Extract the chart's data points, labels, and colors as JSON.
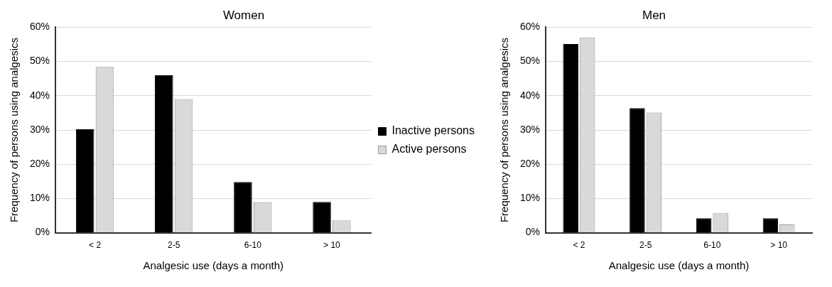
{
  "chart_data": [
    {
      "type": "bar",
      "title": "Women",
      "xlabel": "Analgesic use (days a month)",
      "ylabel": "Frequency of persons using analgesics",
      "categories": [
        "< 2",
        "2-5",
        "6-10",
        "> 10"
      ],
      "series": [
        {
          "name": "Inactive persons",
          "color": "#000000",
          "values": [
            30.2,
            46.0,
            14.8,
            9.0
          ]
        },
        {
          "name": "Active persons",
          "color": "#d9d9d9",
          "values": [
            48.4,
            39.0,
            8.9,
            3.6
          ]
        }
      ],
      "ylim": [
        0,
        60
      ],
      "yticks": [
        {
          "value": 0,
          "label": "0%"
        },
        {
          "value": 10,
          "label": "10%"
        },
        {
          "value": 20,
          "label": "20%"
        },
        {
          "value": 30,
          "label": "30%"
        },
        {
          "value": 40,
          "label": "40%"
        },
        {
          "value": 50,
          "label": "50%"
        },
        {
          "value": 60,
          "label": "60%"
        }
      ],
      "grid": "y",
      "legend": "right"
    },
    {
      "type": "bar",
      "title": "Men",
      "xlabel": "Analgesic use (days a month)",
      "ylabel": "Frequency of persons using analgesics",
      "categories": [
        "< 2",
        "2-5",
        "6-10",
        "> 10"
      ],
      "series": [
        {
          "color": "#000000",
          "values": [
            55.1,
            36.4,
            4.2,
            4.2
          ]
        },
        {
          "color": "#d9d9d9",
          "values": [
            57.0,
            35.1,
            5.7,
            2.4
          ]
        }
      ],
      "ylim": [
        0,
        60
      ],
      "yticks": [
        {
          "value": 0,
          "label": "0%"
        },
        {
          "value": 10,
          "label": "10%"
        },
        {
          "value": 20,
          "label": "20%"
        },
        {
          "value": 30,
          "label": "30%"
        },
        {
          "value": 40,
          "label": "40%"
        },
        {
          "value": 50,
          "label": "50%"
        },
        {
          "value": 60,
          "label": "60%"
        }
      ],
      "grid": "y",
      "legend": false
    }
  ]
}
